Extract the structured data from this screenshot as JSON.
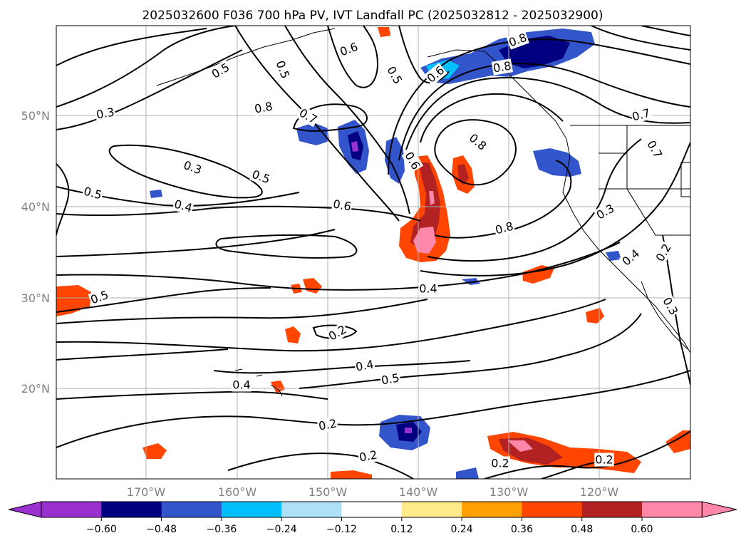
{
  "title": "2025032600 F036 700 hPa PV, IVT Landfall PC (2025032812 - 2025032900)",
  "axes": {
    "lat_labels": [
      "50°N",
      "40°N",
      "30°N",
      "20°N"
    ],
    "lon_labels": [
      "170°W",
      "160°W",
      "150°W",
      "140°W",
      "130°W",
      "120°W"
    ],
    "label_color": "#808080"
  },
  "contour_labels": [
    "0.3",
    "0.5",
    "0.6",
    "0.5",
    "0.8",
    "0.8",
    "0.6",
    "0.5",
    "0.8",
    "0.7",
    "0.3",
    "0.5",
    "0.5",
    "0.4",
    "0.6",
    "0.6",
    "0.8",
    "0.8",
    "0.7",
    "0.7",
    "0.3",
    "0.4",
    "0.2",
    "0.3",
    "0.5",
    "0.4",
    "0.2",
    "0.4",
    "0.5",
    "0.4",
    "0.2",
    "0.2",
    "0.2",
    "0.2"
  ],
  "colorbar": {
    "ticks": [
      "−0.60",
      "−0.48",
      "−0.36",
      "−0.24",
      "−0.12",
      "0.12",
      "0.24",
      "0.36",
      "0.48",
      "0.60"
    ],
    "colors": [
      "#9b30d0",
      "#000080",
      "#3355cc",
      "#00bfff",
      "#aee0f8",
      "#ffffff",
      "#ffe98a",
      "#ffa000",
      "#ff4500",
      "#b22222",
      "#ff88aa",
      "#ff88aa"
    ]
  }
}
